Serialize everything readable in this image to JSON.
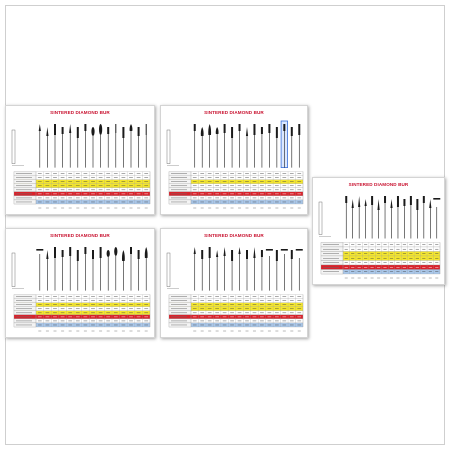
{
  "title": "SINTERED DIAMOND BUR",
  "colors": {
    "title": "#c8102e",
    "row_yellow": "#f5e72c",
    "row_red": "#d9212a",
    "row_blue": "#a9c7ea",
    "row_white": "#ffffff",
    "grid": "#9a9a9a",
    "bur": "#1a1a1a",
    "highlight": "#3a6fd8"
  },
  "sheets": [
    {
      "id": "sheet-1",
      "title": "SINTERED DIAMOND BUR",
      "burs": [
        "pointed",
        "pointed",
        "flat",
        "flat",
        "pointed",
        "flat",
        "flat",
        "bulb",
        "bulb",
        "flat",
        "needle",
        "flat",
        "flame",
        "flat",
        "needle"
      ],
      "rows": [
        "white",
        "white",
        "yellow",
        "yellow",
        "white",
        "red",
        "white",
        "blue"
      ],
      "highlight": null
    },
    {
      "id": "sheet-2",
      "title": "SINTERED DIAMOND BUR",
      "burs": [
        "flat",
        "flame",
        "flame",
        "flame",
        "flat",
        "flat",
        "flat",
        "pointed",
        "flat",
        "flat",
        "flat",
        "flat",
        "flat",
        "flat",
        "flat"
      ],
      "rows": [
        "white",
        "white",
        "yellow",
        "white",
        "white",
        "red",
        "white",
        "blue"
      ],
      "highlight": 12
    },
    {
      "id": "sheet-3",
      "title": "SINTERED DIAMOND BUR",
      "burs": [
        "flat",
        "pointed",
        "pointed",
        "pointed",
        "flat",
        "pointed",
        "flat",
        "pointed",
        "flat",
        "flat",
        "flat",
        "flat",
        "flat",
        "pointed",
        "disc"
      ],
      "rows": [
        "white",
        "white",
        "yellow",
        "yellow",
        "white",
        "red",
        "blue"
      ],
      "highlight": null
    },
    {
      "id": "sheet-4",
      "title": "SINTERED DIAMOND BUR",
      "burs": [
        "disc",
        "pointed",
        "flat",
        "flat",
        "flat",
        "flat",
        "flat",
        "flat",
        "flat",
        "bulb",
        "bulb",
        "flame",
        "flat",
        "flat",
        "flame"
      ],
      "rows": [
        "white",
        "white",
        "yellow",
        "white",
        "yellow",
        "red",
        "white",
        "blue"
      ],
      "highlight": null
    },
    {
      "id": "sheet-5",
      "title": "SINTERED DIAMOND BUR",
      "burs": [
        "pointed",
        "flat",
        "flat",
        "pointed",
        "pointed",
        "flat",
        "pointed",
        "flat",
        "pointed",
        "flat",
        "disc",
        "flat",
        "disc",
        "flat",
        "disc"
      ],
      "rows": [
        "white",
        "white",
        "yellow",
        "yellow",
        "white",
        "red",
        "white",
        "blue"
      ],
      "highlight": null
    }
  ]
}
